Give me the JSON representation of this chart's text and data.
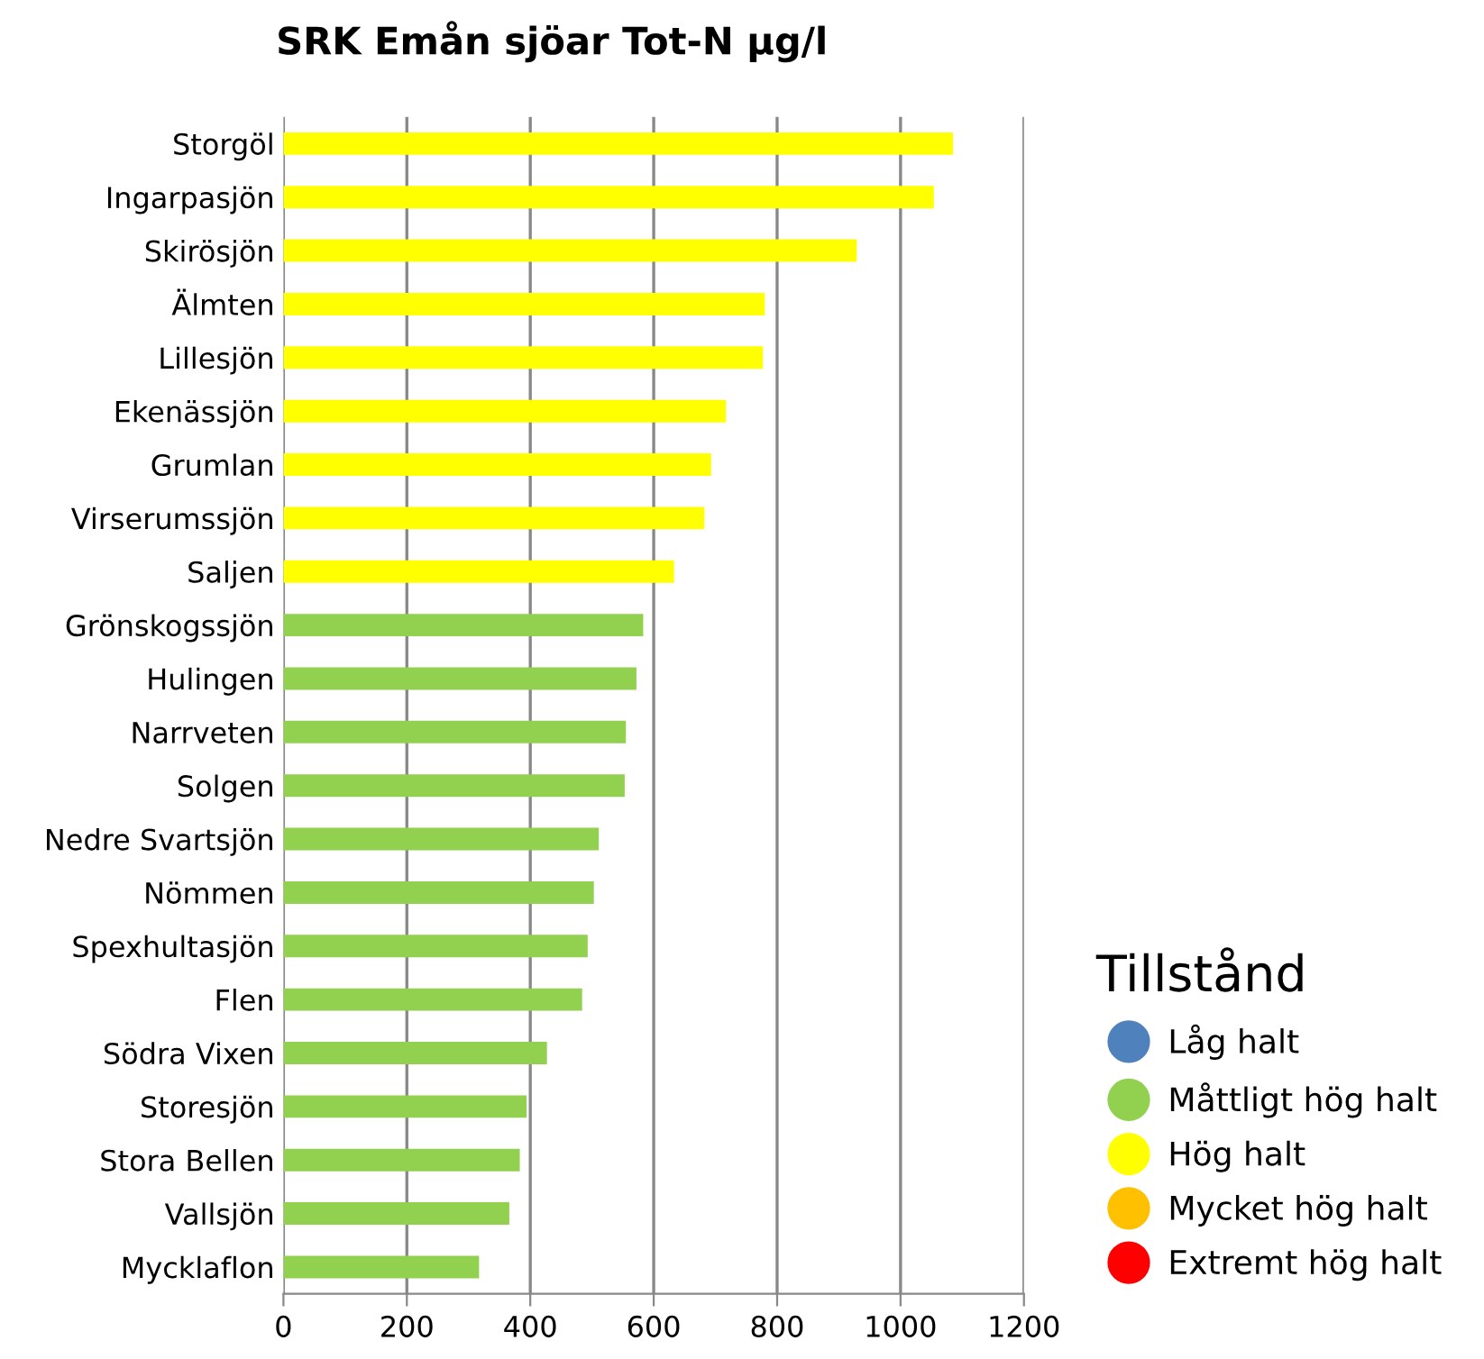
{
  "chart_data": {
    "type": "bar",
    "orientation": "horizontal",
    "title": "SRK Emån sjöar Tot-N µg/l",
    "categories": [
      "Storgöl",
      "Ingarpasjön",
      "Skirösjön",
      "Älmten",
      "Lillesjön",
      "Ekenässjön",
      "Grumlan",
      "Virserumssjön",
      "Saljen",
      "Grönskogssjön",
      "Hulingen",
      "Narrveten",
      "Solgen",
      "Nedre Svartsjön",
      "Nömmen",
      "Spexhultasjön",
      "Flen",
      "Södra Vixen",
      "Storesjön",
      "Stora Bellen",
      "Vallsjön",
      "Mycklaflon"
    ],
    "series": [
      {
        "name": "Låg halt",
        "color": "#4f81bd",
        "values": [
          null,
          null,
          null,
          null,
          null,
          null,
          null,
          null,
          null,
          null,
          null,
          null,
          null,
          null,
          null,
          null,
          null,
          null,
          null,
          null,
          null,
          null
        ]
      },
      {
        "name": "Måttligt hög halt",
        "color": "#92d050",
        "values": [
          null,
          null,
          null,
          null,
          null,
          null,
          null,
          null,
          null,
          583,
          572,
          555,
          553,
          511,
          503,
          493,
          484,
          427,
          394,
          383,
          366,
          317
        ]
      },
      {
        "name": "Hög halt",
        "color": "#ffff00",
        "values": [
          1085,
          1054,
          929,
          780,
          777,
          717,
          693,
          682,
          633,
          null,
          null,
          null,
          null,
          null,
          null,
          null,
          null,
          null,
          null,
          null,
          null,
          null
        ]
      },
      {
        "name": "Mycket hög halt",
        "color": "#ffc000",
        "values": [
          null,
          null,
          null,
          null,
          null,
          null,
          null,
          null,
          null,
          null,
          null,
          null,
          null,
          null,
          null,
          null,
          null,
          null,
          null,
          null,
          null,
          null
        ]
      },
      {
        "name": "Extremt hög halt",
        "color": "#ff0000",
        "values": [
          null,
          null,
          null,
          null,
          null,
          null,
          null,
          null,
          null,
          null,
          null,
          null,
          null,
          null,
          null,
          null,
          null,
          null,
          null,
          null,
          null,
          null
        ]
      }
    ],
    "xlim": [
      0,
      1200
    ],
    "xticks": [
      0,
      200,
      400,
      600,
      800,
      1000,
      1200
    ],
    "grid": "x",
    "legend": "bottom right",
    "legend_title": "Tillstånd"
  }
}
